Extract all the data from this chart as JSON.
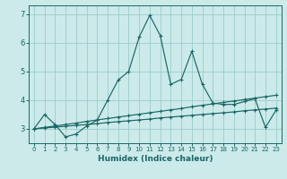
{
  "xlabel": "Humidex (Indice chaleur)",
  "bg_color": "#cceaea",
  "grid_color": "#99cccc",
  "line_color": "#1a6666",
  "xlim": [
    -0.5,
    23.5
  ],
  "ylim": [
    2.5,
    7.3
  ],
  "x_ticks": [
    0,
    1,
    2,
    3,
    4,
    5,
    6,
    7,
    8,
    9,
    10,
    11,
    12,
    13,
    14,
    15,
    16,
    17,
    18,
    19,
    20,
    21,
    22,
    23
  ],
  "y_ticks": [
    3,
    4,
    5,
    6,
    7
  ],
  "main_x": [
    0,
    1,
    2,
    3,
    4,
    5,
    6,
    7,
    8,
    9,
    10,
    11,
    12,
    13,
    14,
    15,
    16,
    17,
    18,
    19,
    20,
    21,
    22,
    23
  ],
  "main_y": [
    3.0,
    3.5,
    3.15,
    2.72,
    2.82,
    3.1,
    3.3,
    4.0,
    4.7,
    5.0,
    6.2,
    6.95,
    6.25,
    4.55,
    4.72,
    5.7,
    4.55,
    3.9,
    3.85,
    3.85,
    3.95,
    4.05,
    3.05,
    3.65
  ],
  "line2_x": [
    0,
    1,
    2,
    3,
    4,
    5,
    6,
    7,
    8,
    9,
    10,
    11,
    12,
    13,
    14,
    15,
    16,
    17,
    18,
    19,
    20,
    21,
    22,
    23
  ],
  "line2_y": [
    3.0,
    3.03,
    3.06,
    3.09,
    3.12,
    3.15,
    3.18,
    3.22,
    3.25,
    3.28,
    3.31,
    3.34,
    3.38,
    3.41,
    3.44,
    3.47,
    3.5,
    3.53,
    3.56,
    3.59,
    3.63,
    3.66,
    3.69,
    3.72
  ],
  "line3_x": [
    0,
    1,
    2,
    3,
    4,
    5,
    6,
    7,
    8,
    9,
    10,
    11,
    12,
    13,
    14,
    15,
    16,
    17,
    18,
    19,
    20,
    21,
    22,
    23
  ],
  "line3_y": [
    3.0,
    3.05,
    3.1,
    3.15,
    3.2,
    3.26,
    3.31,
    3.36,
    3.41,
    3.46,
    3.51,
    3.56,
    3.61,
    3.66,
    3.71,
    3.77,
    3.82,
    3.87,
    3.92,
    3.97,
    4.02,
    4.07,
    4.12,
    4.17
  ]
}
